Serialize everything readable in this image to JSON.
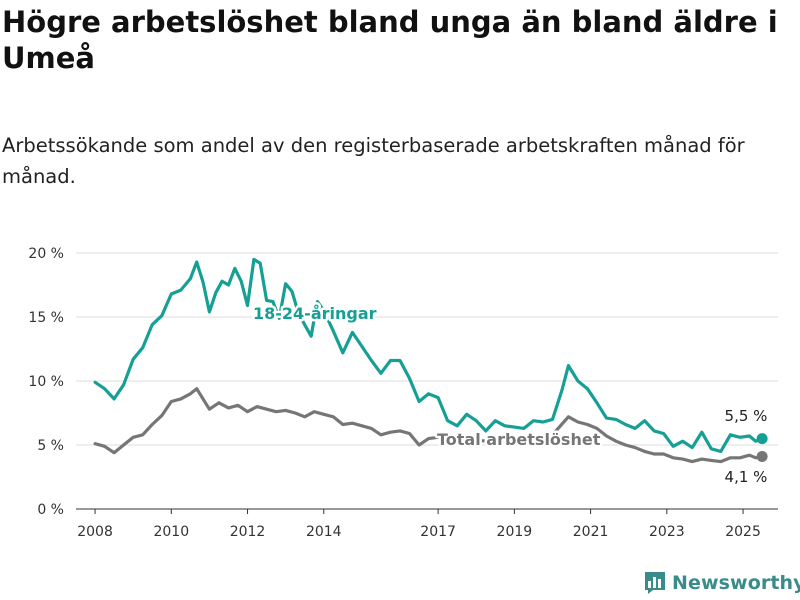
{
  "header": {
    "title": "Högre arbetslöshet bland unga än bland äldre i Umeå",
    "subtitle": "Arbetssökande som andel av den registerbaserade arbetskraften månad för månad."
  },
  "brand": {
    "name": "Newsworthy",
    "icon": "bar-chart-logo-icon",
    "color": "#3a8c8a"
  },
  "chart_data": {
    "type": "line",
    "title": "Högre arbetslöshet bland unga än bland äldre i Umeå",
    "subtitle": "Arbetssökande som andel av den registerbaserade arbetskraften månad för månad.",
    "xlabel": "",
    "ylabel": "",
    "x_ticks": [
      "2008",
      "2010",
      "2012",
      "2014",
      "2017",
      "2019",
      "2021",
      "2023",
      "2025"
    ],
    "y_ticks": [
      "0 %",
      "5 %",
      "10 %",
      "15 %",
      "20 %"
    ],
    "ylim": [
      0,
      20
    ],
    "xlim": [
      "2007-07",
      "2025-12"
    ],
    "grid": "horizontal",
    "legend": "inline labels",
    "series": [
      {
        "name": "18-24-åringar",
        "color": "#16a095",
        "end_label": "5,5 %",
        "points": [
          [
            "2008-01",
            9.9
          ],
          [
            "2008-04",
            9.4
          ],
          [
            "2008-07",
            8.6
          ],
          [
            "2008-10",
            9.7
          ],
          [
            "2009-01",
            11.7
          ],
          [
            "2009-04",
            12.6
          ],
          [
            "2009-07",
            14.4
          ],
          [
            "2009-10",
            15.1
          ],
          [
            "2010-01",
            16.8
          ],
          [
            "2010-04",
            17.1
          ],
          [
            "2010-07",
            18.0
          ],
          [
            "2010-09",
            19.3
          ],
          [
            "2010-11",
            17.7
          ],
          [
            "2011-01",
            15.4
          ],
          [
            "2011-03",
            16.9
          ],
          [
            "2011-05",
            17.8
          ],
          [
            "2011-07",
            17.5
          ],
          [
            "2011-09",
            18.8
          ],
          [
            "2011-11",
            17.8
          ],
          [
            "2012-01",
            15.9
          ],
          [
            "2012-03",
            19.5
          ],
          [
            "2012-05",
            19.2
          ],
          [
            "2012-07",
            16.3
          ],
          [
            "2012-09",
            16.2
          ],
          [
            "2012-11",
            14.9
          ],
          [
            "2013-01",
            17.6
          ],
          [
            "2013-03",
            17.0
          ],
          [
            "2013-05",
            15.3
          ],
          [
            "2013-07",
            14.4
          ],
          [
            "2013-09",
            13.5
          ],
          [
            "2013-11",
            16.2
          ],
          [
            "2014-01",
            15.5
          ],
          [
            "2014-04",
            13.9
          ],
          [
            "2014-07",
            12.2
          ],
          [
            "2014-10",
            13.8
          ],
          [
            "2015-01",
            12.7
          ],
          [
            "2015-04",
            11.6
          ],
          [
            "2015-07",
            10.6
          ],
          [
            "2015-10",
            11.6
          ],
          [
            "2016-01",
            11.6
          ],
          [
            "2016-04",
            10.2
          ],
          [
            "2016-07",
            8.4
          ],
          [
            "2016-10",
            9.0
          ],
          [
            "2017-01",
            8.7
          ],
          [
            "2017-04",
            6.9
          ],
          [
            "2017-07",
            6.5
          ],
          [
            "2017-10",
            7.4
          ],
          [
            "2018-01",
            6.9
          ],
          [
            "2018-04",
            6.1
          ],
          [
            "2018-07",
            6.9
          ],
          [
            "2018-10",
            6.5
          ],
          [
            "2019-01",
            6.4
          ],
          [
            "2019-04",
            6.3
          ],
          [
            "2019-07",
            6.9
          ],
          [
            "2019-10",
            6.8
          ],
          [
            "2020-01",
            7.0
          ],
          [
            "2020-04",
            9.3
          ],
          [
            "2020-06",
            11.2
          ],
          [
            "2020-09",
            10.0
          ],
          [
            "2020-12",
            9.4
          ],
          [
            "2021-03",
            8.3
          ],
          [
            "2021-06",
            7.1
          ],
          [
            "2021-09",
            7.0
          ],
          [
            "2021-12",
            6.6
          ],
          [
            "2022-03",
            6.3
          ],
          [
            "2022-06",
            6.9
          ],
          [
            "2022-09",
            6.1
          ],
          [
            "2022-12",
            5.9
          ],
          [
            "2023-03",
            4.9
          ],
          [
            "2023-06",
            5.3
          ],
          [
            "2023-09",
            4.8
          ],
          [
            "2023-12",
            6.0
          ],
          [
            "2024-03",
            4.7
          ],
          [
            "2024-06",
            4.5
          ],
          [
            "2024-09",
            5.8
          ],
          [
            "2024-12",
            5.6
          ],
          [
            "2025-03",
            5.7
          ],
          [
            "2025-05",
            5.3
          ],
          [
            "2025-07",
            5.5
          ]
        ]
      },
      {
        "name": "Total arbetslöshet",
        "color": "#767676",
        "end_label": "4,1 %",
        "points": [
          [
            "2008-01",
            5.1
          ],
          [
            "2008-04",
            4.9
          ],
          [
            "2008-07",
            4.4
          ],
          [
            "2008-10",
            5.0
          ],
          [
            "2009-01",
            5.6
          ],
          [
            "2009-04",
            5.8
          ],
          [
            "2009-07",
            6.6
          ],
          [
            "2009-10",
            7.3
          ],
          [
            "2010-01",
            8.4
          ],
          [
            "2010-04",
            8.6
          ],
          [
            "2010-07",
            9.0
          ],
          [
            "2010-09",
            9.4
          ],
          [
            "2011-01",
            7.8
          ],
          [
            "2011-04",
            8.3
          ],
          [
            "2011-07",
            7.9
          ],
          [
            "2011-10",
            8.1
          ],
          [
            "2012-01",
            7.6
          ],
          [
            "2012-04",
            8.0
          ],
          [
            "2012-07",
            7.8
          ],
          [
            "2012-10",
            7.6
          ],
          [
            "2013-01",
            7.7
          ],
          [
            "2013-04",
            7.5
          ],
          [
            "2013-07",
            7.2
          ],
          [
            "2013-10",
            7.6
          ],
          [
            "2014-01",
            7.4
          ],
          [
            "2014-04",
            7.2
          ],
          [
            "2014-07",
            6.6
          ],
          [
            "2014-10",
            6.7
          ],
          [
            "2015-01",
            6.5
          ],
          [
            "2015-04",
            6.3
          ],
          [
            "2015-07",
            5.8
          ],
          [
            "2015-10",
            6.0
          ],
          [
            "2016-01",
            6.1
          ],
          [
            "2016-04",
            5.9
          ],
          [
            "2016-07",
            5.0
          ],
          [
            "2016-10",
            5.5
          ],
          [
            "2017-01",
            5.6
          ],
          [
            "2017-04",
            5.3
          ],
          [
            "2017-07",
            5.4
          ],
          [
            "2017-10",
            5.5
          ],
          [
            "2018-01",
            5.4
          ],
          [
            "2018-04",
            5.3
          ],
          [
            "2018-07",
            5.1
          ],
          [
            "2018-10",
            5.4
          ],
          [
            "2019-01",
            5.3
          ],
          [
            "2019-04",
            5.2
          ],
          [
            "2019-07",
            5.3
          ],
          [
            "2019-10",
            5.4
          ],
          [
            "2020-01",
            5.8
          ],
          [
            "2020-06",
            7.2
          ],
          [
            "2020-09",
            6.8
          ],
          [
            "2020-12",
            6.6
          ],
          [
            "2021-03",
            6.3
          ],
          [
            "2021-06",
            5.7
          ],
          [
            "2021-09",
            5.3
          ],
          [
            "2021-12",
            5.0
          ],
          [
            "2022-03",
            4.8
          ],
          [
            "2022-06",
            4.5
          ],
          [
            "2022-09",
            4.3
          ],
          [
            "2022-12",
            4.3
          ],
          [
            "2023-03",
            4.0
          ],
          [
            "2023-06",
            3.9
          ],
          [
            "2023-09",
            3.7
          ],
          [
            "2023-12",
            3.9
          ],
          [
            "2024-03",
            3.8
          ],
          [
            "2024-06",
            3.7
          ],
          [
            "2024-09",
            4.0
          ],
          [
            "2024-12",
            4.0
          ],
          [
            "2025-03",
            4.2
          ],
          [
            "2025-05",
            4.0
          ],
          [
            "2025-07",
            4.1
          ]
        ]
      }
    ]
  }
}
